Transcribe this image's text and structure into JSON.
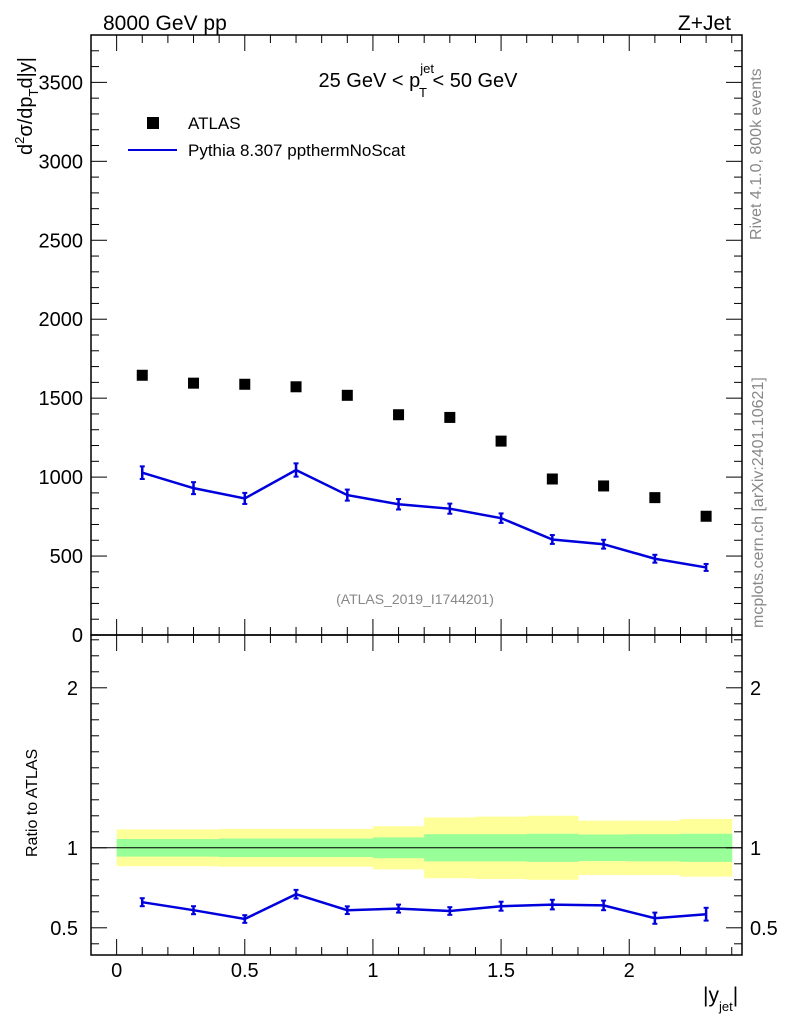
{
  "header": {
    "left": "8000 GeV pp",
    "right": "Z+Jet",
    "side_rivet": "Rivet 4.1.0,  800k events",
    "side_mcplots": "mcplots.cern.ch [arXiv:2401.10621]"
  },
  "colors": {
    "mc": "#0000dd",
    "band_inner": "#99ff99",
    "band_outer": "#ffff99",
    "data": "#000000"
  },
  "chart_data": [
    {
      "type": "scatter",
      "title_parts": {
        "prefix": "25 GeV < p",
        "sup": "jet",
        "sub": "T",
        "suffix": " < 50 GeV"
      },
      "ylabel_parts": {
        "d": "d",
        "two": "2",
        "sigma": "σ/dp",
        "T": "T",
        "rest": "d|y|"
      },
      "watermark": "(ATLAS_2019_I1744201)",
      "xlim": [
        -0.1,
        2.44
      ],
      "ylim": [
        0,
        3800
      ],
      "yticks": [
        {
          "v": 0,
          "label": "0"
        },
        {
          "v": 500,
          "label": "500"
        },
        {
          "v": 1000,
          "label": "1000"
        },
        {
          "v": 1500,
          "label": "1500"
        },
        {
          "v": 2000,
          "label": "2000"
        },
        {
          "v": 2500,
          "label": "2500"
        },
        {
          "v": 3000,
          "label": "3000"
        },
        {
          "v": 3500,
          "label": "3500"
        }
      ],
      "legend": {
        "data_label": "ATLAS",
        "mc_label": "Pythia 8.307 ppthermNoScat"
      },
      "x": [
        0.1,
        0.3,
        0.5,
        0.7,
        0.9,
        1.1,
        1.3,
        1.5,
        1.7,
        1.9,
        2.1,
        2.3
      ],
      "series": [
        {
          "name": "ATLAS",
          "values": [
            1645,
            1595,
            1588,
            1572,
            1518,
            1395,
            1378,
            1228,
            988,
            944,
            870,
            752
          ]
        },
        {
          "name": "Pythia 8.307 ppthermNoScat",
          "values": [
            1028,
            930,
            865,
            1045,
            886,
            828,
            800,
            740,
            605,
            575,
            483,
            428
          ],
          "err": [
            40,
            38,
            35,
            42,
            35,
            33,
            32,
            30,
            28,
            28,
            25,
            22
          ]
        }
      ]
    },
    {
      "type": "line",
      "ylabel": "Ratio to ATLAS",
      "xlabel_parts": {
        "main": "|y",
        "sub": "jet",
        "close": "|"
      },
      "xlim": [
        -0.1,
        2.44
      ],
      "ylim": [
        0.33,
        2.33
      ],
      "yticks": [
        {
          "v": 0.5,
          "label": "0.5"
        },
        {
          "v": 1,
          "label": "1"
        },
        {
          "v": 2,
          "label": "2"
        }
      ],
      "xticks": [
        {
          "v": 0,
          "label": "0"
        },
        {
          "v": 0.5,
          "label": "0.5"
        },
        {
          "v": 1,
          "label": "1"
        },
        {
          "v": 1.5,
          "label": "1.5"
        },
        {
          "v": 2,
          "label": "2"
        }
      ],
      "bins": [
        0,
        0.2,
        0.4,
        0.6,
        0.8,
        1.0,
        1.2,
        1.4,
        1.6,
        1.8,
        2.0,
        2.2,
        2.4
      ],
      "band_inner": [
        [
          0.945,
          1.055
        ],
        [
          0.945,
          1.055
        ],
        [
          0.942,
          1.058
        ],
        [
          0.942,
          1.058
        ],
        [
          0.942,
          1.058
        ],
        [
          0.935,
          1.065
        ],
        [
          0.915,
          1.085
        ],
        [
          0.915,
          1.085
        ],
        [
          0.912,
          1.088
        ],
        [
          0.917,
          1.083
        ],
        [
          0.915,
          1.085
        ],
        [
          0.912,
          1.088
        ]
      ],
      "band_outer": [
        [
          0.885,
          1.115
        ],
        [
          0.885,
          1.115
        ],
        [
          0.882,
          1.118
        ],
        [
          0.882,
          1.118
        ],
        [
          0.882,
          1.118
        ],
        [
          0.865,
          1.135
        ],
        [
          0.81,
          1.19
        ],
        [
          0.805,
          1.195
        ],
        [
          0.8,
          1.2
        ],
        [
          0.83,
          1.17
        ],
        [
          0.83,
          1.17
        ],
        [
          0.82,
          1.18
        ]
      ],
      "x": [
        0.1,
        0.3,
        0.5,
        0.7,
        0.9,
        1.1,
        1.3,
        1.5,
        1.7,
        1.9,
        2.1,
        2.3
      ],
      "series": [
        {
          "name": "Pythia 8.307 ppthermNoScat / ATLAS",
          "values": [
            0.66,
            0.61,
            0.555,
            0.71,
            0.61,
            0.62,
            0.605,
            0.635,
            0.645,
            0.64,
            0.56,
            0.585
          ],
          "err": [
            0.025,
            0.025,
            0.024,
            0.027,
            0.024,
            0.025,
            0.024,
            0.028,
            0.03,
            0.03,
            0.035,
            0.04
          ]
        }
      ]
    }
  ]
}
